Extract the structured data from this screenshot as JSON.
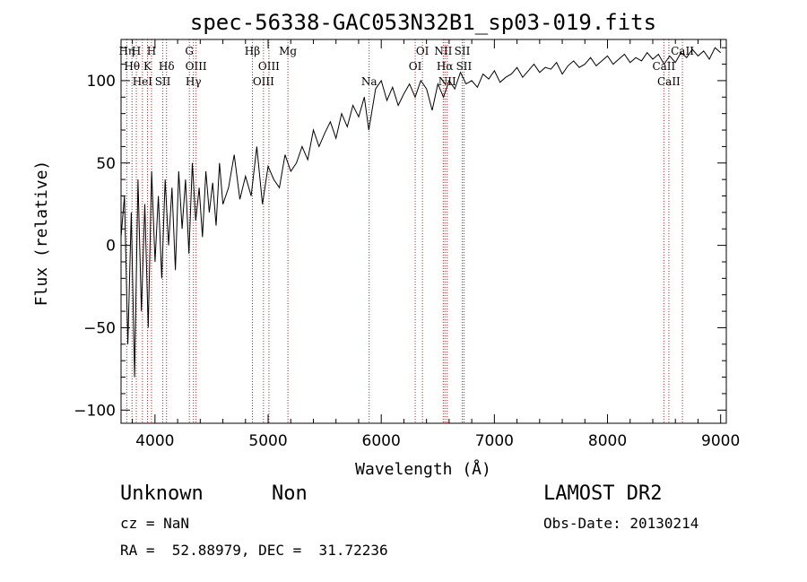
{
  "chart_data": {
    "type": "line",
    "title": "spec-56338-GAC053N32B1_sp03-019.fits",
    "xlabel": "Wavelength (Å)",
    "ylabel": "Flux (relative)",
    "xlim": [
      3700,
      9050
    ],
    "ylim": [
      -108,
      125
    ],
    "x_ticks": [
      4000,
      5000,
      6000,
      7000,
      8000,
      9000
    ],
    "x_tick_labels": [
      "4000",
      "5000",
      "6000",
      "7000",
      "8000",
      "9000"
    ],
    "y_ticks": [
      -100,
      -50,
      0,
      50,
      100
    ],
    "y_tick_labels": [
      "−100",
      "−50",
      "0",
      "50",
      "100"
    ],
    "grid": false,
    "series": [
      {
        "name": "",
        "color": "#000000",
        "x": [
          3700,
          3730,
          3760,
          3790,
          3820,
          3850,
          3880,
          3910,
          3940,
          3970,
          4000,
          4030,
          4060,
          4090,
          4120,
          4150,
          4180,
          4210,
          4240,
          4270,
          4300,
          4330,
          4360,
          4390,
          4420,
          4450,
          4480,
          4510,
          4540,
          4570,
          4600,
          4650,
          4700,
          4750,
          4800,
          4850,
          4900,
          4950,
          5000,
          5050,
          5100,
          5150,
          5200,
          5250,
          5300,
          5350,
          5400,
          5450,
          5500,
          5550,
          5600,
          5650,
          5700,
          5750,
          5800,
          5850,
          5890,
          5950,
          6000,
          6050,
          6100,
          6150,
          6200,
          6250,
          6300,
          6350,
          6400,
          6450,
          6500,
          6550,
          6600,
          6650,
          6700,
          6750,
          6800,
          6850,
          6900,
          6950,
          7000,
          7050,
          7100,
          7150,
          7200,
          7250,
          7300,
          7350,
          7400,
          7450,
          7500,
          7550,
          7600,
          7650,
          7700,
          7750,
          7800,
          7850,
          7900,
          7950,
          8000,
          8050,
          8100,
          8150,
          8200,
          8250,
          8300,
          8350,
          8400,
          8450,
          8500,
          8550,
          8600,
          8650,
          8700,
          8750,
          8800,
          8850,
          8900,
          8950,
          9000
        ],
        "values": [
          5,
          30,
          -60,
          20,
          -80,
          40,
          -40,
          25,
          -50,
          45,
          -10,
          30,
          -20,
          40,
          0,
          35,
          -15,
          45,
          10,
          40,
          -5,
          50,
          15,
          35,
          5,
          45,
          20,
          38,
          12,
          50,
          25,
          35,
          55,
          28,
          42,
          30,
          60,
          25,
          48,
          40,
          35,
          55,
          45,
          50,
          60,
          52,
          70,
          60,
          68,
          75,
          65,
          80,
          72,
          85,
          78,
          90,
          70,
          95,
          100,
          88,
          96,
          85,
          92,
          98,
          90,
          100,
          95,
          82,
          98,
          90,
          100,
          95,
          105,
          98,
          100,
          96,
          104,
          101,
          106,
          99,
          102,
          104,
          108,
          102,
          106,
          110,
          105,
          108,
          107,
          111,
          104,
          109,
          112,
          108,
          110,
          114,
          109,
          112,
          115,
          110,
          113,
          116,
          111,
          114,
          112,
          117,
          113,
          116,
          110,
          115,
          111,
          117,
          114,
          119,
          115,
          118,
          113,
          120,
          117
        ]
      }
    ],
    "lines": [
      {
        "x": 3750,
        "label": "Hη",
        "row": 0
      },
      {
        "x": 3797,
        "label": "Hθ",
        "row": 1
      },
      {
        "x": 3835,
        "label": "H",
        "row": 0
      },
      {
        "x": 3889,
        "label": "HeI",
        "row": 2
      },
      {
        "x": 3934,
        "label": "K",
        "row": 1
      },
      {
        "x": 3969,
        "label": "H",
        "row": 0
      },
      {
        "x": 4069,
        "label": "SII",
        "row": 2
      },
      {
        "x": 4102,
        "label": "Hδ",
        "row": 1
      },
      {
        "x": 4304,
        "label": "G",
        "row": 0
      },
      {
        "x": 4340,
        "label": "Hγ",
        "row": 2
      },
      {
        "x": 4363,
        "label": "OIII",
        "row": 1
      },
      {
        "x": 4861,
        "label": "Hβ",
        "row": 0
      },
      {
        "x": 4959,
        "label": "OIII",
        "row": 2
      },
      {
        "x": 5007,
        "label": "OIII",
        "row": 1
      },
      {
        "x": 5175,
        "label": "Mg",
        "row": 0
      },
      {
        "x": 5893,
        "label": "Na",
        "row": 2
      },
      {
        "x": 6300,
        "label": "OI",
        "row": 1
      },
      {
        "x": 6364,
        "label": "OI",
        "row": 0
      },
      {
        "x": 6548,
        "label": "NII",
        "row": 0
      },
      {
        "x": 6563,
        "label": "Hα",
        "row": 1
      },
      {
        "x": 6583,
        "label": "NII",
        "row": 2
      },
      {
        "x": 6716,
        "label": "SII",
        "row": 0
      },
      {
        "x": 6731,
        "label": "SII",
        "row": 1
      },
      {
        "x": 8498,
        "label": "CaII",
        "row": 1
      },
      {
        "x": 8542,
        "label": "CaII",
        "row": 2
      },
      {
        "x": 8662,
        "label": "CaII",
        "row": 0
      }
    ]
  },
  "info": {
    "object_class": "Unknown",
    "subclass": "Non",
    "release": "LAMOST DR2",
    "redshift": "cz = NaN",
    "obs_date": "Obs-Date: 20130214",
    "coords": "RA =  52.88979, DEC =  31.72236"
  }
}
